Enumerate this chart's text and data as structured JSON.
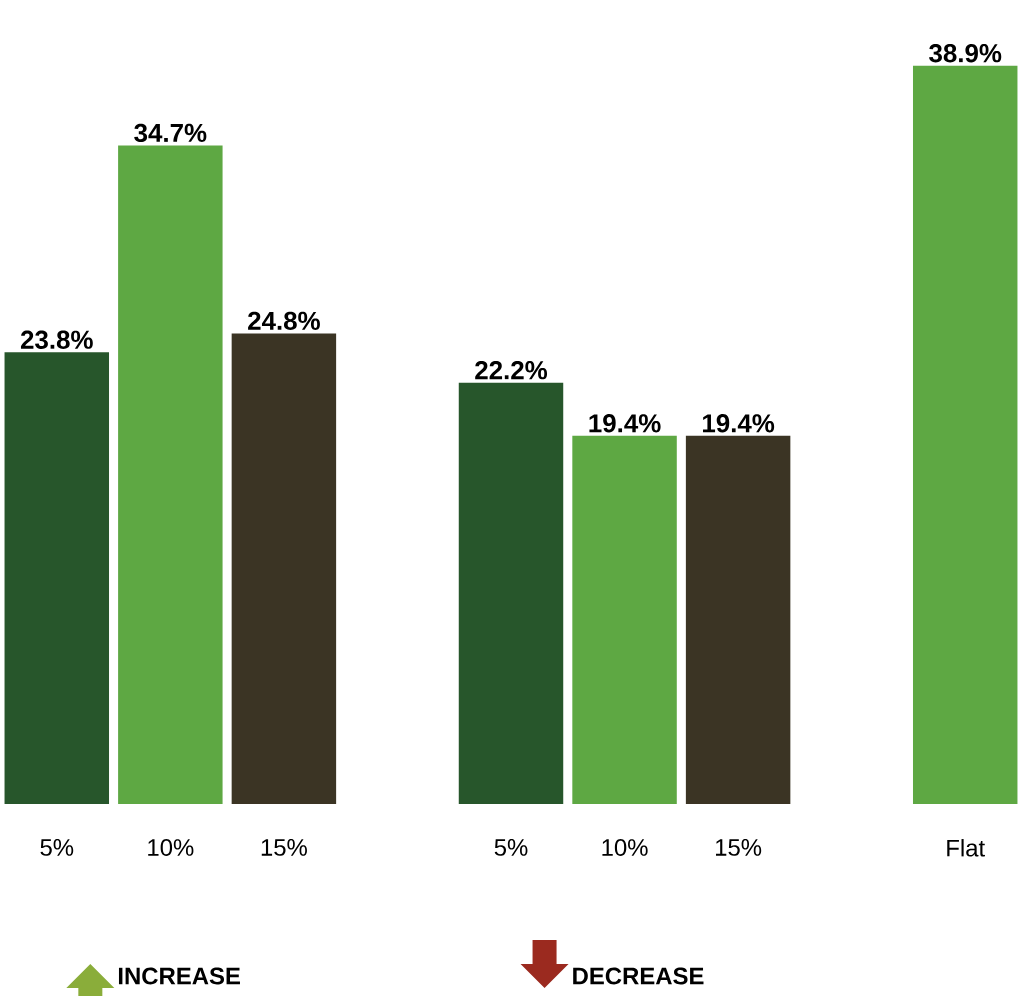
{
  "chart_data": {
    "type": "bar",
    "categories": [
      "5%",
      "10%",
      "15%",
      null,
      "5%",
      "10%",
      "15%",
      null,
      "Flat"
    ],
    "values": [
      23.8,
      34.7,
      24.8,
      null,
      22.2,
      19.4,
      19.4,
      null,
      38.9
    ],
    "value_labels": [
      "23.8%",
      "34.7%",
      "24.8%",
      null,
      "22.2%",
      "19.4%",
      "19.4%",
      null,
      "38.9%"
    ],
    "colors": [
      "#27562b",
      "#5ea843",
      "#3b3424",
      null,
      "#27562b",
      "#5ea843",
      "#3b3424",
      null,
      "#5ea843"
    ],
    "annotations": [
      "INCREASE",
      "DECREASE"
    ]
  }
}
